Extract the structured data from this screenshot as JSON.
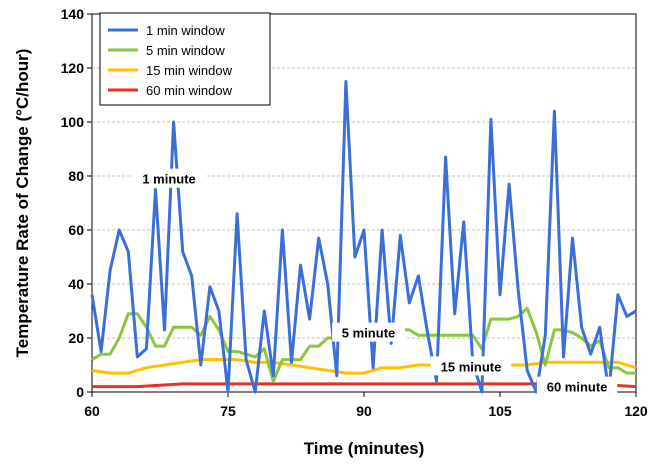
{
  "chart_data": {
    "type": "line",
    "title": "",
    "xlabel": "Time (minutes)",
    "ylabel": "Temperature Rate of Change (°C/hour)",
    "xlim": [
      60,
      120
    ],
    "ylim": [
      0,
      140
    ],
    "xticks": [
      60,
      75,
      90,
      105,
      120
    ],
    "yticks": [
      0,
      20,
      40,
      60,
      80,
      100,
      120,
      140
    ],
    "grid": "horizontal",
    "legend_position": "top-left",
    "series": [
      {
        "name": "1 min window",
        "color": "#3b6fd8",
        "x": [
          60,
          61,
          62,
          63,
          64,
          65,
          66,
          67,
          68,
          69,
          70,
          71,
          72,
          73,
          74,
          75,
          76,
          77,
          78,
          79,
          80,
          81,
          82,
          83,
          84,
          85,
          86,
          87,
          88,
          89,
          90,
          91,
          92,
          93,
          94,
          95,
          96,
          97,
          98,
          99,
          100,
          101,
          102,
          103,
          104,
          105,
          106,
          107,
          108,
          109,
          110,
          111,
          112,
          113,
          114,
          115,
          116,
          117,
          118,
          119,
          120
        ],
        "values": [
          36,
          15,
          45,
          60,
          52,
          13,
          16,
          75,
          23,
          100,
          52,
          43,
          10,
          39,
          30,
          0,
          66,
          12,
          0,
          30,
          6,
          60,
          11,
          47,
          27,
          57,
          40,
          6,
          115,
          50,
          60,
          9,
          60,
          18,
          58,
          33,
          43,
          22,
          4,
          87,
          29,
          63,
          11,
          0,
          101,
          36,
          77,
          38,
          8,
          0,
          21,
          104,
          13,
          57,
          24,
          14,
          24,
          0,
          36,
          28,
          30
        ]
      },
      {
        "name": "5 min window",
        "color": "#8cc63f",
        "x": [
          60,
          61,
          62,
          63,
          64,
          65,
          66,
          67,
          68,
          69,
          70,
          71,
          72,
          73,
          74,
          75,
          76,
          77,
          78,
          79,
          80,
          81,
          82,
          83,
          84,
          85,
          86,
          87,
          88,
          89,
          90,
          91,
          92,
          93,
          94,
          95,
          96,
          97,
          98,
          99,
          100,
          101,
          102,
          103,
          104,
          105,
          106,
          107,
          108,
          109,
          110,
          111,
          112,
          113,
          114,
          115,
          116,
          117,
          118,
          119,
          120
        ],
        "values": [
          12,
          14,
          14,
          20,
          29,
          29,
          24,
          17,
          17,
          24,
          24,
          24,
          21,
          28,
          23,
          15,
          15,
          14,
          13,
          16,
          4,
          12,
          12,
          12,
          17,
          17,
          20,
          20,
          23,
          23,
          23,
          23,
          23,
          23,
          23,
          23,
          21,
          21,
          21,
          21,
          21,
          21,
          21,
          16,
          27,
          27,
          27,
          28,
          31,
          22,
          10,
          23,
          23,
          22,
          20,
          17,
          19,
          9,
          9,
          7,
          7
        ]
      },
      {
        "name": "15 min window",
        "color": "#ffc000",
        "x": [
          60,
          62,
          64,
          66,
          68,
          70,
          72,
          74,
          76,
          78,
          80,
          82,
          84,
          86,
          88,
          90,
          92,
          94,
          96,
          98,
          100,
          102,
          104,
          106,
          108,
          110,
          112,
          114,
          116,
          118,
          120
        ],
        "values": [
          8,
          7,
          7,
          9,
          10,
          11,
          12,
          12,
          12,
          11,
          11,
          10,
          9,
          8,
          7,
          7,
          9,
          9,
          10,
          10,
          10,
          9,
          9,
          10,
          10,
          11,
          11,
          11,
          11,
          11,
          9
        ]
      },
      {
        "name": "60 min window",
        "color": "#e8302a",
        "x": [
          60,
          65,
          70,
          75,
          80,
          85,
          90,
          95,
          100,
          105,
          110,
          115,
          120
        ],
        "values": [
          2,
          2,
          3,
          3,
          3,
          3,
          3,
          3,
          3,
          3,
          3,
          3,
          2
        ]
      }
    ],
    "annotations": [
      {
        "text": "1 minute",
        "x": 68.5,
        "y": 79
      },
      {
        "text": "5 minute",
        "x": 90.5,
        "y": 22
      },
      {
        "text": "15 minute",
        "x": 101.8,
        "y": 9.5
      },
      {
        "text": "60 minute",
        "x": 113.5,
        "y": 2
      }
    ]
  }
}
